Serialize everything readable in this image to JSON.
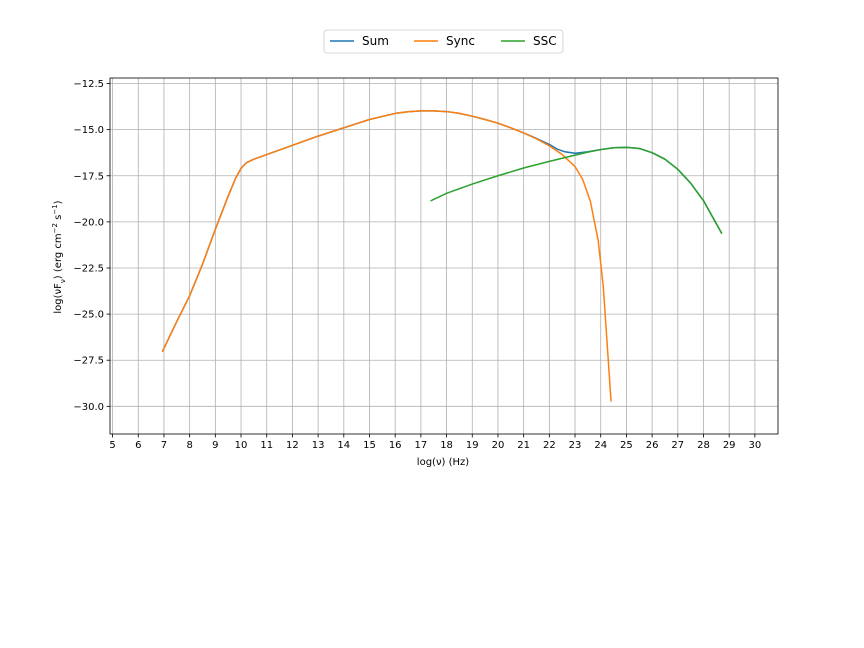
{
  "chart_data": {
    "type": "line",
    "xlabel": "log(ν)  (Hz)",
    "ylabel_main": "log(νF",
    "ylabel_sub": "ν",
    "ylabel_units": ")  (erg cm",
    "ylabel_sup1": "−2",
    "ylabel_s": "  s",
    "ylabel_sup2": "−1",
    "ylabel_close": ")",
    "xlim": [
      4.9,
      30.9
    ],
    "ylim": [
      -31.5,
      -12.2
    ],
    "xticks": [
      5,
      6,
      7,
      8,
      9,
      10,
      11,
      12,
      13,
      14,
      15,
      16,
      17,
      18,
      19,
      20,
      21,
      22,
      23,
      24,
      25,
      26,
      27,
      28,
      29,
      30
    ],
    "xtick_labels": [
      "5",
      "6",
      "7",
      "8",
      "9",
      "10",
      "11",
      "12",
      "13",
      "14",
      "15",
      "16",
      "17",
      "18",
      "19",
      "20",
      "21",
      "22",
      "23",
      "24",
      "25",
      "26",
      "27",
      "28",
      "29",
      "30"
    ],
    "yticks": [
      -12.5,
      -15.0,
      -17.5,
      -20.0,
      -22.5,
      -25.0,
      -27.5,
      -30.0
    ],
    "ytick_labels": [
      "−12.5",
      "−15.0",
      "−17.5",
      "−20.0",
      "−22.5",
      "−25.0",
      "−27.5",
      "−30.0"
    ],
    "grid": true,
    "legend_position": "top-center",
    "series": [
      {
        "name": "Sum",
        "color": "#1f77b4",
        "x": [
          6.95,
          7.5,
          8.0,
          8.5,
          9.0,
          9.5,
          9.8,
          10.0,
          10.2,
          10.5,
          11.0,
          12.0,
          13.0,
          14.0,
          15.0,
          16.0,
          16.5,
          17.0,
          17.5,
          18.0,
          18.5,
          19.0,
          19.5,
          20.0,
          20.5,
          21.0,
          21.5,
          22.0,
          22.3,
          22.6,
          23.0,
          23.5,
          24.0,
          24.5,
          25.0,
          25.5,
          26.0,
          26.5,
          27.0,
          27.5,
          28.0,
          28.3,
          28.7
        ],
        "y": [
          -27.0,
          -25.4,
          -24.0,
          -22.3,
          -20.4,
          -18.6,
          -17.6,
          -17.1,
          -16.8,
          -16.6,
          -16.35,
          -15.85,
          -15.35,
          -14.9,
          -14.45,
          -14.12,
          -14.03,
          -13.98,
          -13.98,
          -14.02,
          -14.12,
          -14.27,
          -14.45,
          -14.65,
          -14.9,
          -15.18,
          -15.48,
          -15.8,
          -16.05,
          -16.2,
          -16.28,
          -16.2,
          -16.08,
          -15.98,
          -15.96,
          -16.02,
          -16.25,
          -16.6,
          -17.15,
          -17.9,
          -18.85,
          -19.6,
          -20.6
        ]
      },
      {
        "name": "Sync",
        "color": "#ff7f0e",
        "x": [
          6.95,
          7.5,
          8.0,
          8.5,
          9.0,
          9.5,
          9.8,
          10.0,
          10.2,
          10.5,
          11.0,
          12.0,
          13.0,
          14.0,
          15.0,
          16.0,
          16.5,
          17.0,
          17.5,
          18.0,
          18.5,
          19.0,
          19.5,
          20.0,
          20.5,
          21.0,
          21.5,
          22.0,
          22.5,
          23.0,
          23.3,
          23.6,
          23.9,
          24.1,
          24.25,
          24.4
        ],
        "y": [
          -27.0,
          -25.4,
          -24.0,
          -22.3,
          -20.4,
          -18.6,
          -17.6,
          -17.1,
          -16.8,
          -16.6,
          -16.35,
          -15.85,
          -15.35,
          -14.9,
          -14.45,
          -14.12,
          -14.03,
          -13.98,
          -13.98,
          -14.02,
          -14.12,
          -14.27,
          -14.45,
          -14.65,
          -14.9,
          -15.18,
          -15.5,
          -15.88,
          -16.35,
          -17.0,
          -17.7,
          -18.9,
          -21.0,
          -23.5,
          -26.6,
          -29.7
        ]
      },
      {
        "name": "SSC",
        "color": "#2ca02c",
        "x": [
          17.4,
          18.0,
          19.0,
          20.0,
          21.0,
          22.0,
          22.5,
          23.0,
          23.5,
          24.0,
          24.5,
          25.0,
          25.5,
          26.0,
          26.5,
          27.0,
          27.5,
          28.0,
          28.3,
          28.7
        ],
        "y": [
          -18.85,
          -18.45,
          -17.95,
          -17.5,
          -17.08,
          -16.72,
          -16.55,
          -16.38,
          -16.22,
          -16.08,
          -15.98,
          -15.96,
          -16.02,
          -16.25,
          -16.6,
          -17.15,
          -17.9,
          -18.85,
          -19.6,
          -20.6
        ]
      }
    ]
  }
}
